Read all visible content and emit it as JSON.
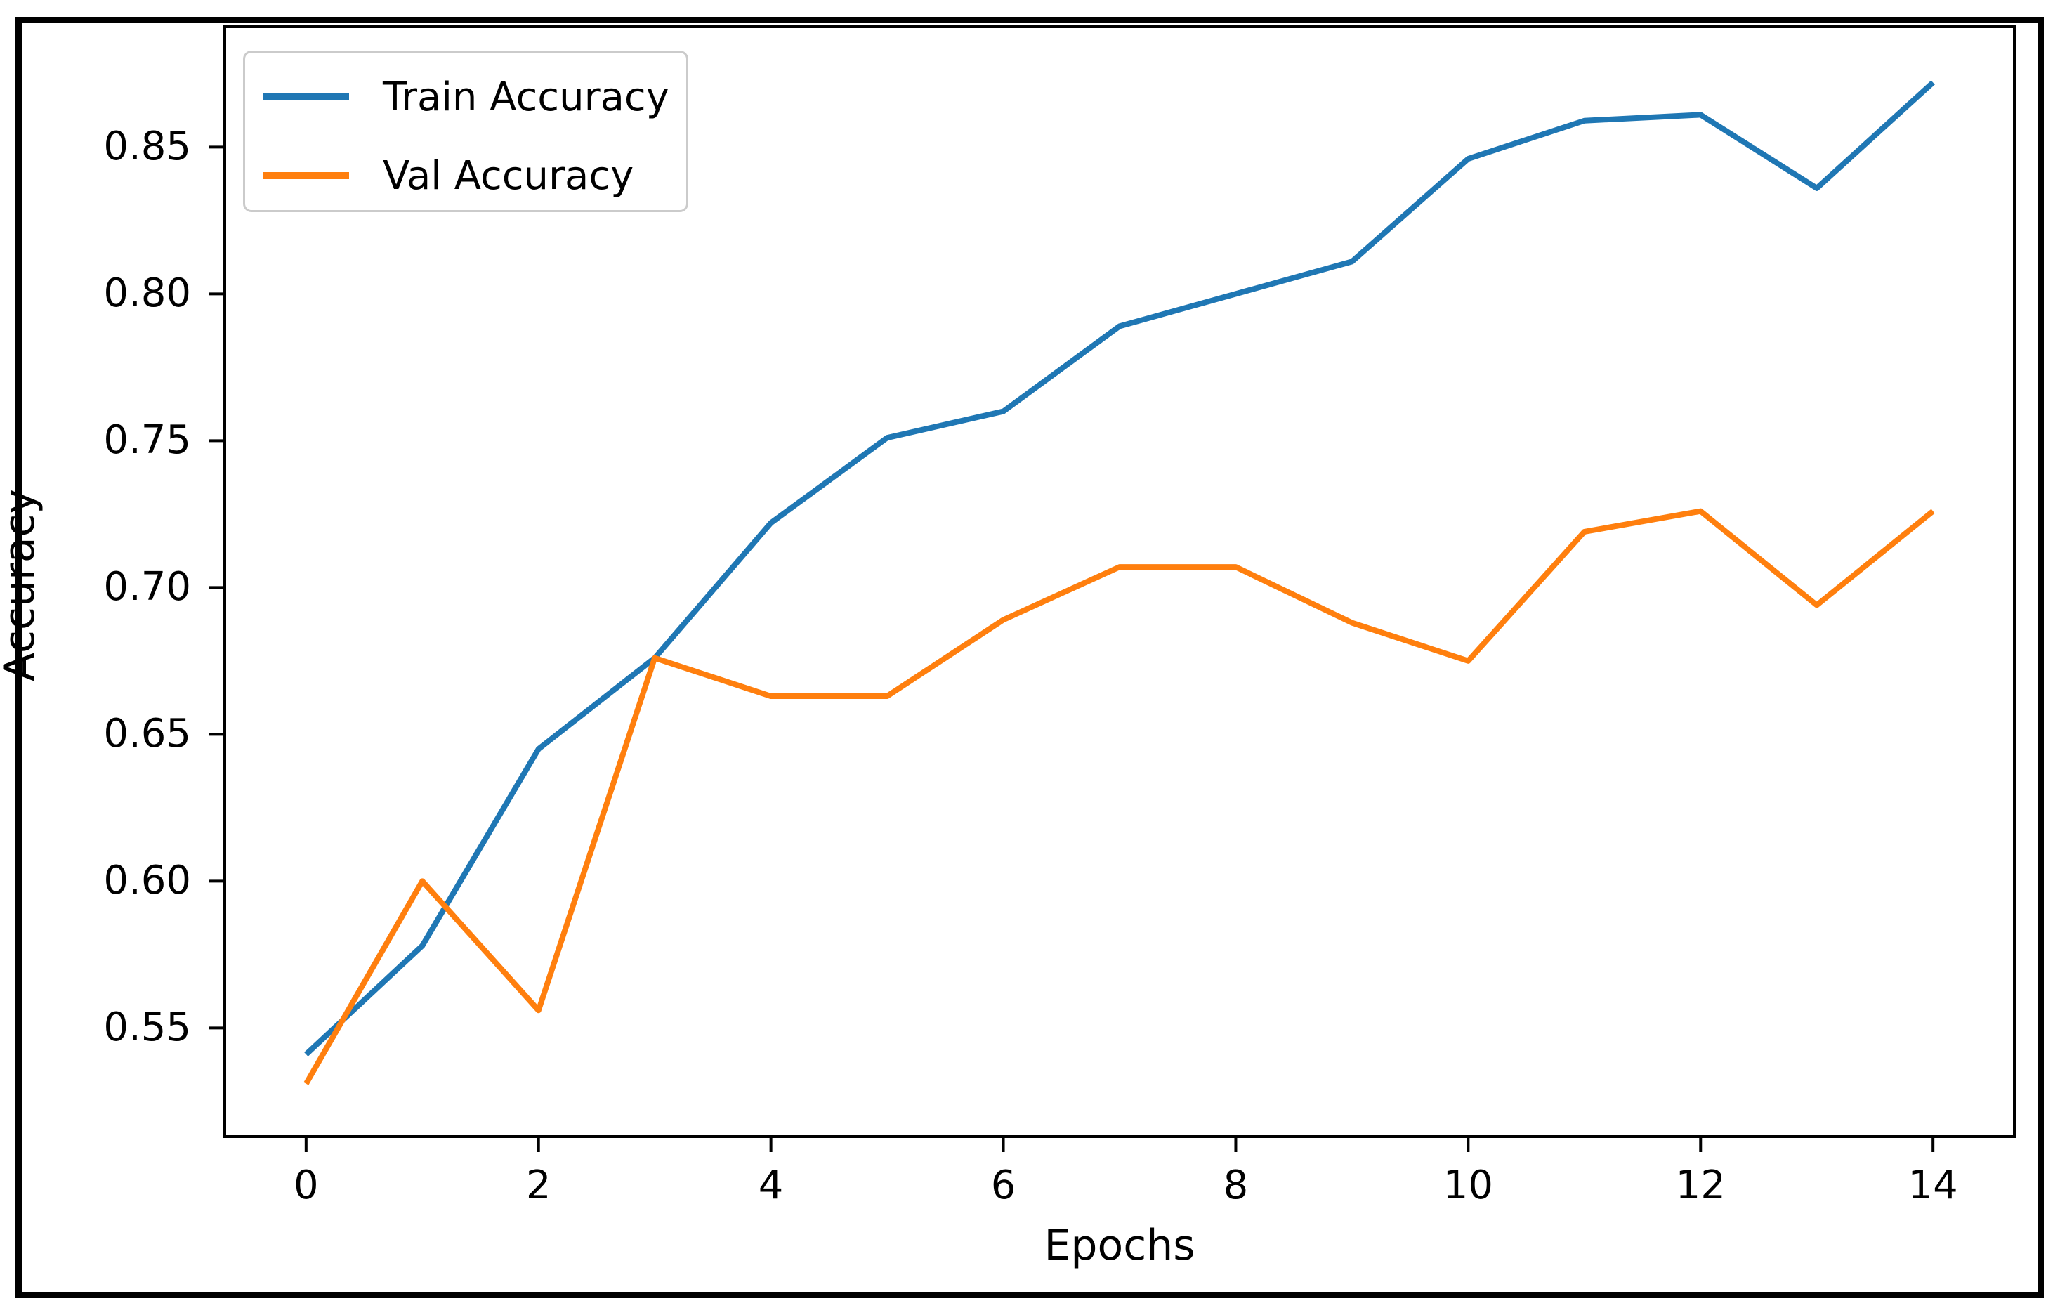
{
  "chart_data": {
    "type": "line",
    "title": "",
    "xlabel": "Epochs",
    "ylabel": "Accuracy",
    "x": [
      0,
      1,
      2,
      3,
      4,
      5,
      6,
      7,
      8,
      9,
      10,
      11,
      12,
      13,
      14
    ],
    "series": [
      {
        "name": "Train Accuracy",
        "color": "#1f77b4",
        "values": [
          0.541,
          0.578,
          0.645,
          0.676,
          0.722,
          0.751,
          0.76,
          0.789,
          0.8,
          0.811,
          0.846,
          0.859,
          0.861,
          0.836,
          0.872
        ]
      },
      {
        "name": "Val Accuracy",
        "color": "#ff7f0e",
        "values": [
          0.531,
          0.6,
          0.556,
          0.676,
          0.663,
          0.663,
          0.689,
          0.707,
          0.707,
          0.688,
          0.675,
          0.719,
          0.726,
          0.694,
          0.726
        ]
      }
    ],
    "xlim": [
      -0.7,
      14.7
    ],
    "ylim": [
      0.513,
      0.891
    ],
    "xticks": {
      "values": [
        0,
        2,
        4,
        6,
        8,
        10,
        12,
        14
      ],
      "labels": [
        "0",
        "2",
        "4",
        "6",
        "8",
        "10",
        "12",
        "14"
      ]
    },
    "yticks": {
      "values": [
        0.55,
        0.6,
        0.65,
        0.7,
        0.75,
        0.8,
        0.85
      ],
      "labels": [
        "0.55",
        "0.60",
        "0.65",
        "0.70",
        "0.75",
        "0.80",
        "0.85"
      ]
    },
    "grid": false,
    "legend_position": "upper left",
    "axis_color": "#000000",
    "text_color": "#000000",
    "background": "#ffffff"
  }
}
